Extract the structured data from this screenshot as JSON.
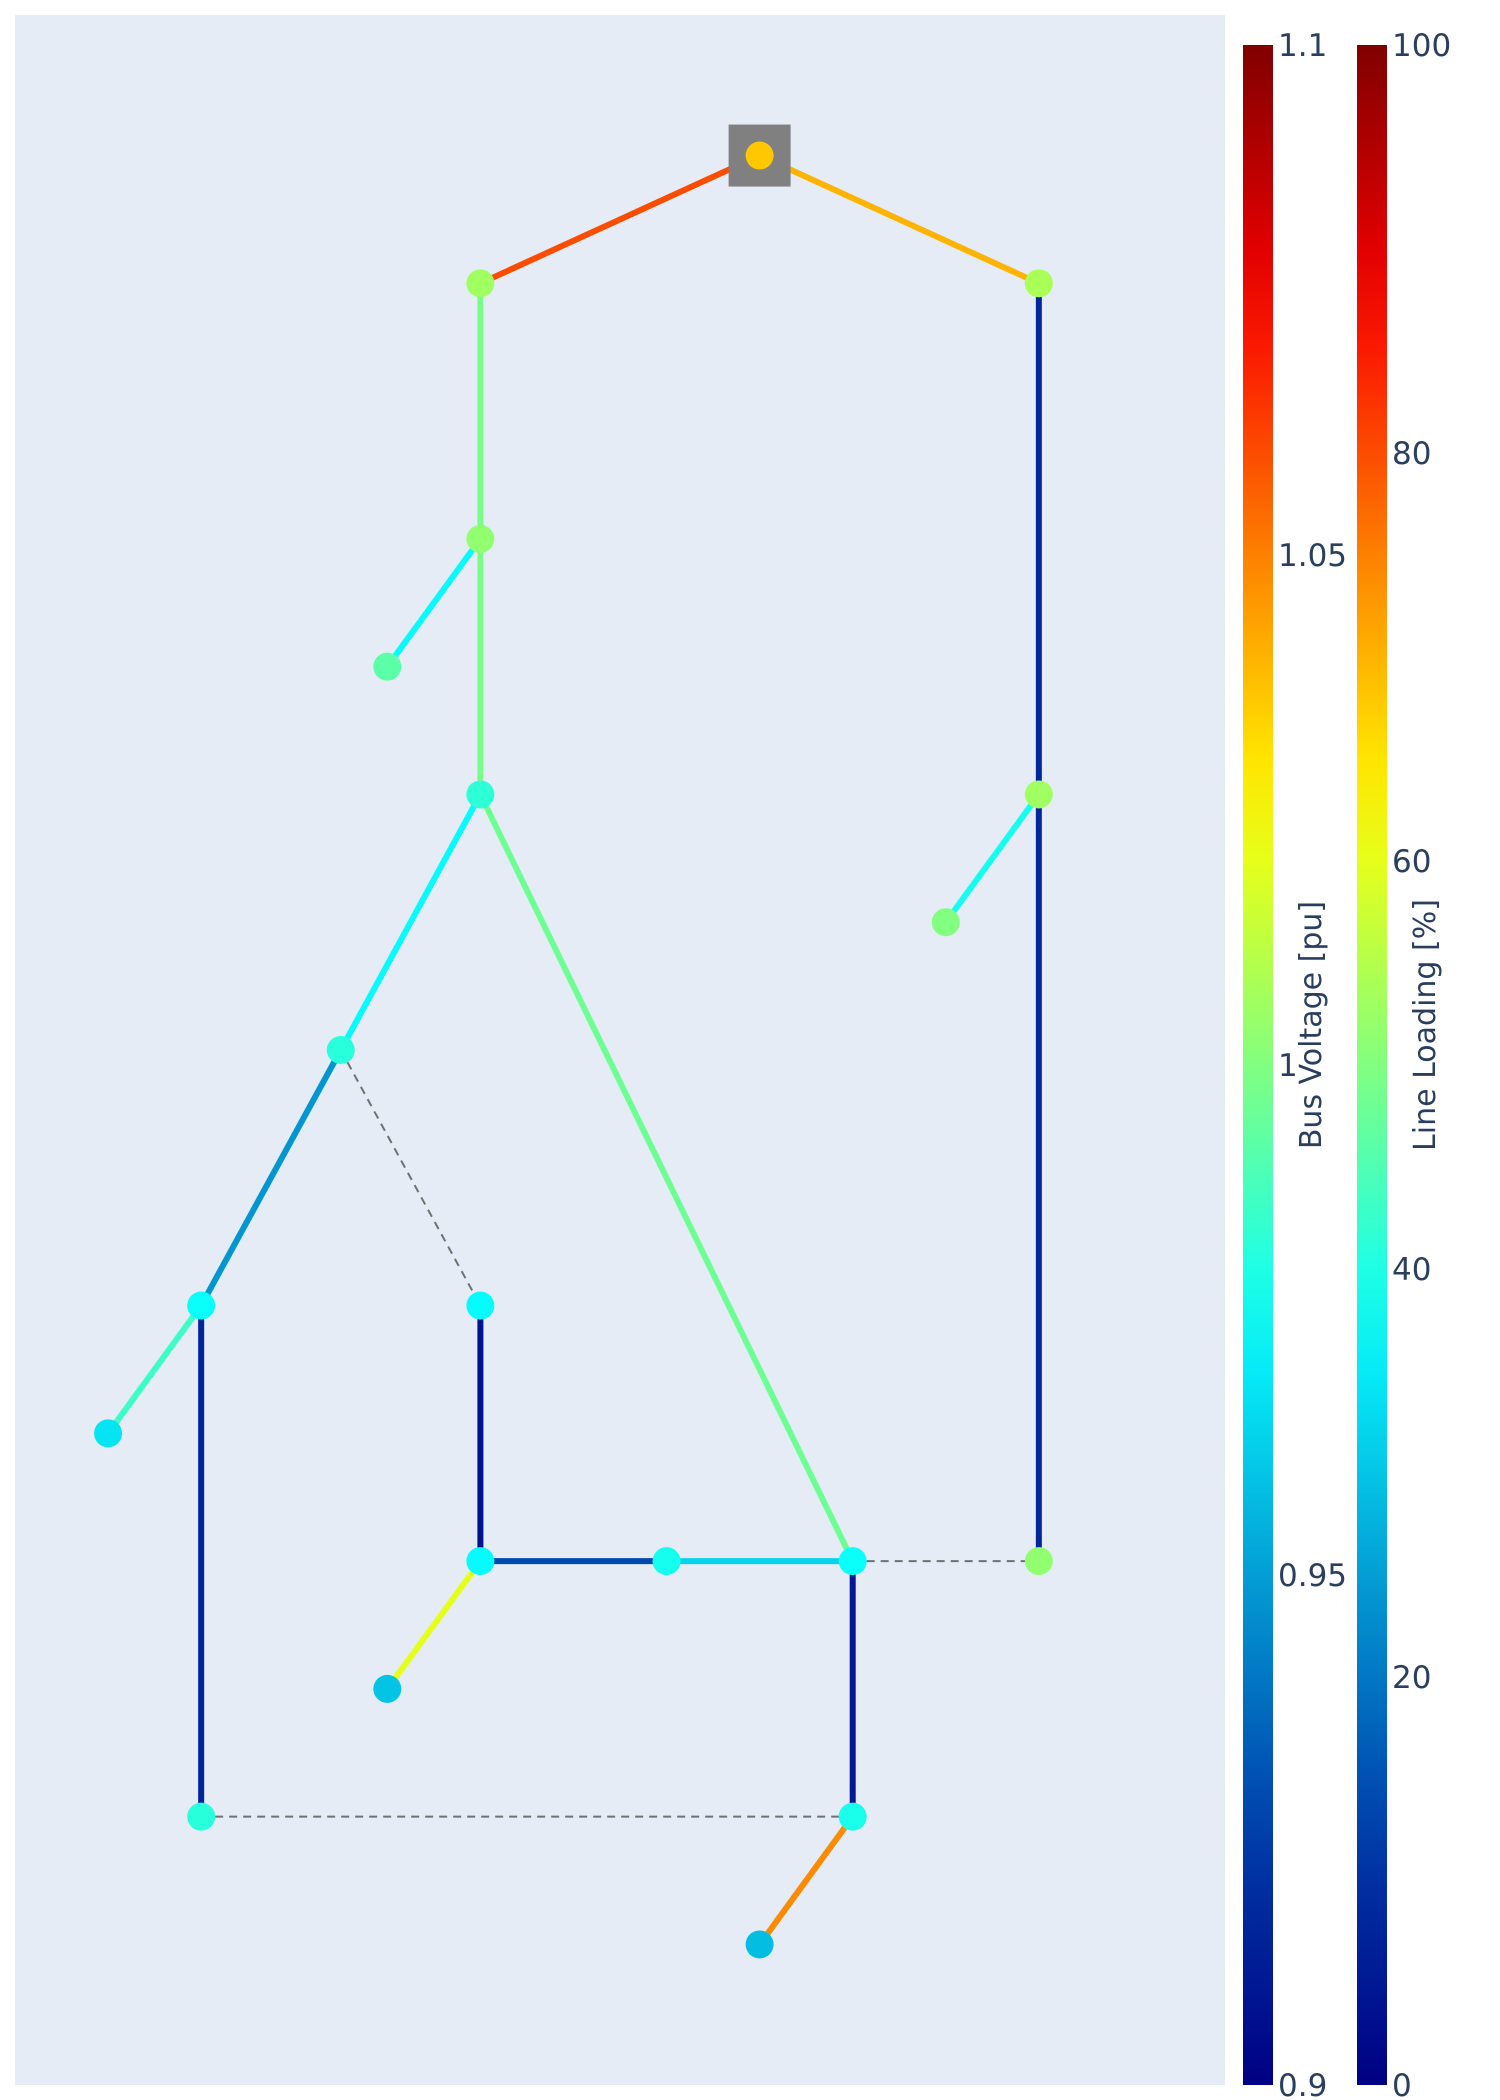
{
  "chart_data": {
    "type": "network",
    "background": "#e5ecf6",
    "colorscale_name": "jet",
    "bus_voltage_colorbar": {
      "title": "Bus Voltage [pu]",
      "range": [
        0.9,
        1.1
      ],
      "ticks": [
        {
          "value": 0.9,
          "label": "0.9"
        },
        {
          "value": 0.95,
          "label": "0.95"
        },
        {
          "value": 1.0,
          "label": "1"
        },
        {
          "value": 1.05,
          "label": "1.05"
        },
        {
          "value": 1.1,
          "label": "1.1"
        }
      ]
    },
    "line_loading_colorbar": {
      "title": "Line Loading [%]",
      "range": [
        0,
        100
      ],
      "ticks": [
        {
          "value": 0,
          "label": "0"
        },
        {
          "value": 20,
          "label": "20"
        },
        {
          "value": 40,
          "label": "40"
        },
        {
          "value": 60,
          "label": "60"
        },
        {
          "value": 80,
          "label": "80"
        },
        {
          "value": 100,
          "label": "100"
        }
      ]
    },
    "ext_grid": {
      "bus": 0,
      "color": "#808080"
    },
    "buses": [
      {
        "id": 0,
        "x": 6,
        "y": 0,
        "vm_pu": 1.036
      },
      {
        "id": 1,
        "x": 3,
        "y": 1,
        "vm_pu": 1.006
      },
      {
        "id": 2,
        "x": 3,
        "y": 3,
        "vm_pu": 1.003
      },
      {
        "id": 3,
        "x": 2,
        "y": 4,
        "vm_pu": 0.992
      },
      {
        "id": 4,
        "x": 3,
        "y": 5,
        "vm_pu": 0.983
      },
      {
        "id": 5,
        "x": 1.5,
        "y": 7,
        "vm_pu": 0.982
      },
      {
        "id": 6,
        "x": 0,
        "y": 9,
        "vm_pu": 0.976
      },
      {
        "id": 7,
        "x": -1,
        "y": 10,
        "vm_pu": 0.968
      },
      {
        "id": 8,
        "x": 0,
        "y": 13,
        "vm_pu": 0.982
      },
      {
        "id": 9,
        "x": 3,
        "y": 9,
        "vm_pu": 0.974
      },
      {
        "id": 10,
        "x": 3,
        "y": 11,
        "vm_pu": 0.974
      },
      {
        "id": 11,
        "x": 2,
        "y": 12,
        "vm_pu": 0.96
      },
      {
        "id": 12,
        "x": 5,
        "y": 11,
        "vm_pu": 0.978
      },
      {
        "id": 13,
        "x": 7,
        "y": 11,
        "vm_pu": 0.976
      },
      {
        "id": 14,
        "x": 7,
        "y": 13,
        "vm_pu": 0.979
      },
      {
        "id": 15,
        "x": 6,
        "y": 14,
        "vm_pu": 0.958
      },
      {
        "id": 16,
        "x": 9,
        "y": 1,
        "vm_pu": 1.008
      },
      {
        "id": 17,
        "x": 9,
        "y": 5,
        "vm_pu": 1.006
      },
      {
        "id": 18,
        "x": 8,
        "y": 6,
        "vm_pu": 1.0
      },
      {
        "id": 19,
        "x": 9,
        "y": 11,
        "vm_pu": 1.003
      }
    ],
    "lines": [
      {
        "from": 0,
        "to": 1,
        "loading_percent": 80,
        "in_service": true
      },
      {
        "from": 0,
        "to": 16,
        "loading_percent": 70,
        "in_service": true
      },
      {
        "from": 1,
        "to": 2,
        "loading_percent": 49,
        "in_service": true
      },
      {
        "from": 2,
        "to": 3,
        "loading_percent": 37,
        "in_service": true
      },
      {
        "from": 2,
        "to": 4,
        "loading_percent": 49,
        "in_service": true
      },
      {
        "from": 4,
        "to": 5,
        "loading_percent": 37,
        "in_service": true
      },
      {
        "from": 4,
        "to": 13,
        "loading_percent": 48,
        "in_service": true
      },
      {
        "from": 5,
        "to": 6,
        "loading_percent": 24,
        "in_service": true
      },
      {
        "from": 6,
        "to": 7,
        "loading_percent": 43,
        "in_service": true
      },
      {
        "from": 6,
        "to": 8,
        "loading_percent": 8,
        "in_service": true
      },
      {
        "from": 9,
        "to": 10,
        "loading_percent": 4,
        "in_service": true
      },
      {
        "from": 10,
        "to": 11,
        "loading_percent": 60,
        "in_service": true
      },
      {
        "from": 10,
        "to": 12,
        "loading_percent": 14,
        "in_service": true
      },
      {
        "from": 12,
        "to": 13,
        "loading_percent": 32,
        "in_service": true
      },
      {
        "from": 13,
        "to": 14,
        "loading_percent": 5,
        "in_service": true
      },
      {
        "from": 14,
        "to": 15,
        "loading_percent": 74,
        "in_service": true
      },
      {
        "from": 16,
        "to": 17,
        "loading_percent": 8,
        "in_service": true
      },
      {
        "from": 17,
        "to": 18,
        "loading_percent": 39,
        "in_service": true
      },
      {
        "from": 17,
        "to": 19,
        "loading_percent": 8,
        "in_service": true
      },
      {
        "from": 5,
        "to": 9,
        "loading_percent": null,
        "in_service": false
      },
      {
        "from": 13,
        "to": 19,
        "loading_percent": null,
        "in_service": false
      },
      {
        "from": 8,
        "to": 14,
        "loading_percent": null,
        "in_service": false
      }
    ],
    "xlim": [
      -2,
      11
    ],
    "ylim": [
      -1.1,
      15.1
    ],
    "grid": false
  }
}
